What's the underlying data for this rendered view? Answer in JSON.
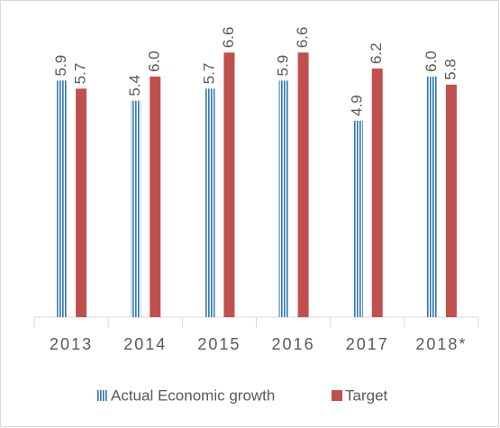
{
  "chart_data": {
    "type": "bar",
    "categories": [
      "2013",
      "2014",
      "2015",
      "2016",
      "2017",
      "2018*"
    ],
    "series": [
      {
        "name": "Actual Economic growth",
        "color": "#2e75b6",
        "values": [
          5.9,
          5.4,
          5.7,
          5.9,
          4.9,
          6.0
        ],
        "value_labels": [
          "5.9",
          "5.4",
          "5.7",
          "5.9",
          "4.9",
          "6.0"
        ]
      },
      {
        "name": "Target",
        "color": "#c0504d",
        "values": [
          5.7,
          6.0,
          6.6,
          6.6,
          6.2,
          5.8
        ],
        "value_labels": [
          "5.7",
          "6.0",
          "6.6",
          "6.6",
          "6.2",
          "5.8"
        ]
      }
    ],
    "legend": "bottom"
  }
}
